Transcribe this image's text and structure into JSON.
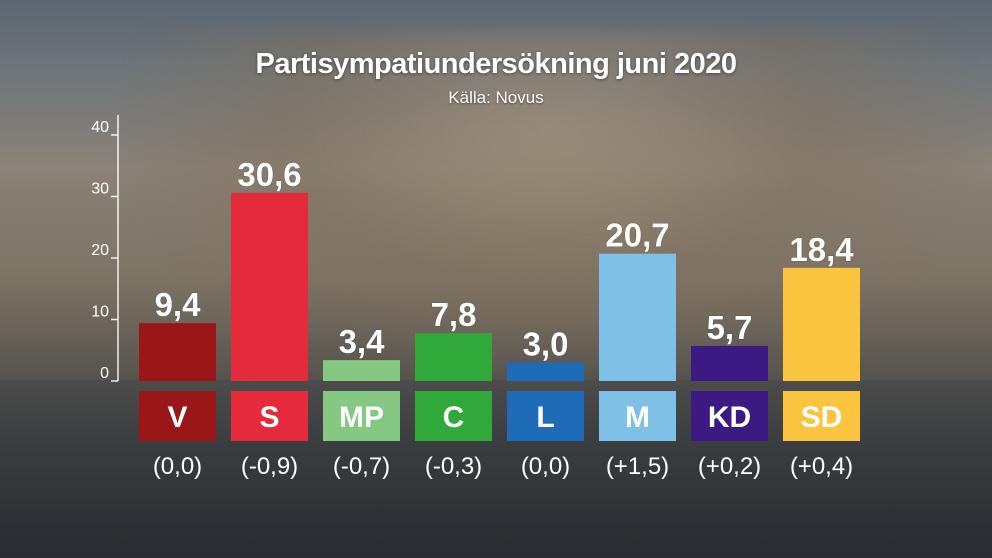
{
  "chart_data": {
    "type": "bar",
    "title": "Partisympatiundersökning juni 2020",
    "subtitle": "Källa: Novus",
    "categories": [
      "V",
      "S",
      "MP",
      "C",
      "L",
      "M",
      "KD",
      "SD"
    ],
    "values": [
      9.4,
      30.6,
      3.4,
      7.8,
      3.0,
      20.7,
      5.7,
      18.4
    ],
    "value_labels": [
      "9,4",
      "30,6",
      "3,4",
      "7,8",
      "3,0",
      "20,7",
      "5,7",
      "18,4"
    ],
    "changes": [
      "(0,0)",
      "(-0,9)",
      "(-0,7)",
      "(-0,3)",
      "(0,0)",
      "(+1,5)",
      "(+0,2)",
      "(+0,4)"
    ],
    "colors": [
      "#9b1616",
      "#e52a3c",
      "#84c882",
      "#31a83a",
      "#1e6bb8",
      "#7fc0e6",
      "#3b1a84",
      "#fbc43e"
    ],
    "yticks": [
      "0",
      "10",
      "20",
      "30",
      "40"
    ],
    "ylim": [
      0,
      40
    ],
    "grid": false,
    "legend": "none"
  }
}
